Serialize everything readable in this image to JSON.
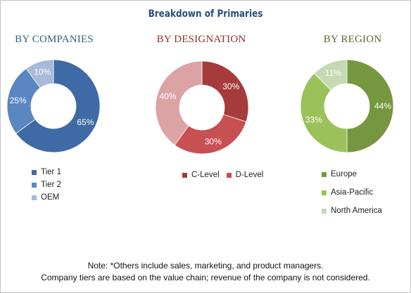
{
  "title": "Breakdown of Primaries",
  "note": {
    "line1": "Note: *Others include sales, marketing, and product managers.",
    "line2": "Company tiers are based on the value chain; revenue of the company is not considered."
  },
  "chart_data": [
    {
      "type": "pie",
      "donut": true,
      "title": "BY COMPANIES",
      "title_color": "#3b5a7f",
      "slices": [
        {
          "label": "Tier 1",
          "value": 65,
          "value_label": "65%",
          "color": "#3e6aa5"
        },
        {
          "label": "Tier 2",
          "value": 25,
          "value_label": "25%",
          "color": "#5a86c2"
        },
        {
          "label": "OEM",
          "value": 10,
          "value_label": "10%",
          "color": "#a8b9d9"
        }
      ]
    },
    {
      "type": "pie",
      "donut": true,
      "title": "BY DESIGNATION",
      "title_color": "#8b2f2e",
      "slices": [
        {
          "label": "C-Level",
          "value": 30,
          "value_label": "30%",
          "color": "#a53b3b"
        },
        {
          "label": "D-Level",
          "value": 30,
          "value_label": "30%",
          "color": "#c65052"
        },
        {
          "label": "",
          "value": 40,
          "value_label": "40%",
          "color": "#dca3a5"
        }
      ]
    },
    {
      "type": "pie",
      "donut": true,
      "title": "BY REGION",
      "title_color": "#556b2f",
      "slices": [
        {
          "label": "Europe",
          "value": 44,
          "value_label": "44%",
          "color": "#76963f"
        },
        {
          "label": "Asia-Pacific",
          "value": 33,
          "value_label": "33%",
          "color": "#99c35a"
        },
        {
          "label": "North America",
          "value": 11,
          "value_label": "11%",
          "color": "#c6d9b2"
        }
      ]
    }
  ]
}
